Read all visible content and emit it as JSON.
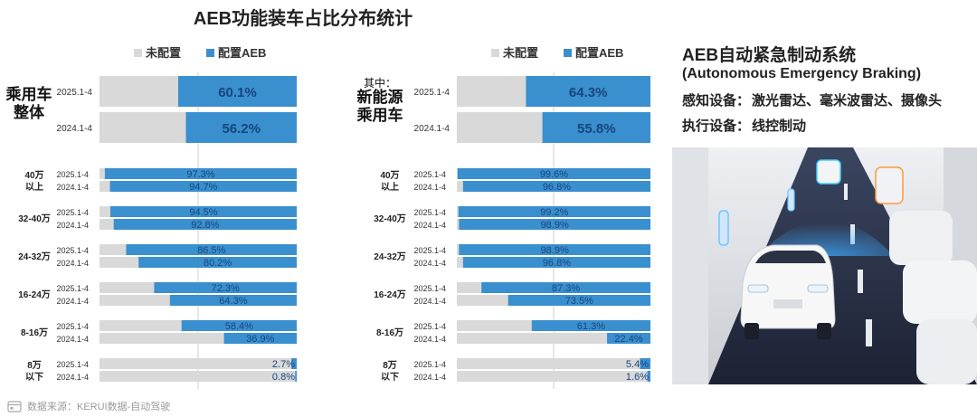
{
  "title": "AEB功能装车占比分布统计",
  "legend": {
    "unconfigured": "未配置",
    "configured": "配置AEB"
  },
  "colors": {
    "configured": "#3a8fcf",
    "unconfigured": "#d9d9d9",
    "label_dark": "#16467c"
  },
  "panels": [
    {
      "group_label_lines": [
        "乘用车",
        "整体"
      ]
    },
    {
      "group_label_lines": [
        "其中：",
        "新能源",
        "乘用车"
      ]
    }
  ],
  "side": {
    "title": "AEB自动紧急制动系统",
    "subtitle": "(Autonomous Emergency Braking)",
    "sensing_label": "感知设备：",
    "sensing_value": "激光雷达、毫米波雷达、摄像头",
    "actuation_label": "执行设备：",
    "actuation_value": "线控制动"
  },
  "footer": {
    "source": "数据来源：KERUI数据-自动驾驶"
  },
  "chart_data": [
    {
      "type": "bar",
      "orientation": "horizontal",
      "stacked_percent": true,
      "title": "乘用车整体",
      "periods": [
        "2025.1-4",
        "2024.1-4"
      ],
      "summary": {
        "2025.1-4": 60.1,
        "2024.1-4": 56.2
      },
      "categories": [
        {
          "label_lines": [
            "40万",
            "以上"
          ],
          "values": {
            "2025.1-4": 97.3,
            "2024.1-4": 94.7
          }
        },
        {
          "label_lines": [
            "32-40万"
          ],
          "values": {
            "2025.1-4": 94.5,
            "2024.1-4": 92.8
          }
        },
        {
          "label_lines": [
            "24-32万"
          ],
          "values": {
            "2025.1-4": 86.5,
            "2024.1-4": 80.2
          }
        },
        {
          "label_lines": [
            "16-24万"
          ],
          "values": {
            "2025.1-4": 72.3,
            "2024.1-4": 64.3
          }
        },
        {
          "label_lines": [
            "8-16万"
          ],
          "values": {
            "2025.1-4": 58.4,
            "2024.1-4": 36.9
          }
        },
        {
          "label_lines": [
            "8万",
            "以下"
          ],
          "values": {
            "2025.1-4": 2.7,
            "2024.1-4": 0.8
          }
        }
      ],
      "xlim": [
        0,
        100
      ],
      "series": [
        {
          "name": "配置AEB",
          "color": "#3a8fcf"
        },
        {
          "name": "未配置",
          "color": "#d9d9d9"
        }
      ],
      "legend_position": "top"
    },
    {
      "type": "bar",
      "orientation": "horizontal",
      "stacked_percent": true,
      "title": "其中：新能源乘用车",
      "periods": [
        "2025.1-4",
        "2024.1-4"
      ],
      "summary": {
        "2025.1-4": 64.3,
        "2024.1-4": 55.8
      },
      "categories": [
        {
          "label_lines": [
            "40万",
            "以上"
          ],
          "values": {
            "2025.1-4": 99.6,
            "2024.1-4": 96.8
          }
        },
        {
          "label_lines": [
            "32-40万"
          ],
          "values": {
            "2025.1-4": 99.2,
            "2024.1-4": 98.9
          }
        },
        {
          "label_lines": [
            "24-32万"
          ],
          "values": {
            "2025.1-4": 98.9,
            "2024.1-4": 96.8
          }
        },
        {
          "label_lines": [
            "16-24万"
          ],
          "values": {
            "2025.1-4": 87.3,
            "2024.1-4": 73.5
          }
        },
        {
          "label_lines": [
            "8-16万"
          ],
          "values": {
            "2025.1-4": 61.3,
            "2024.1-4": 22.4
          }
        },
        {
          "label_lines": [
            "8万",
            "以下"
          ],
          "values": {
            "2025.1-4": 5.4,
            "2024.1-4": 1.6
          }
        }
      ],
      "xlim": [
        0,
        100
      ],
      "series": [
        {
          "name": "配置AEB",
          "color": "#3a8fcf"
        },
        {
          "name": "未配置",
          "color": "#d9d9d9"
        }
      ],
      "legend_position": "top"
    }
  ]
}
